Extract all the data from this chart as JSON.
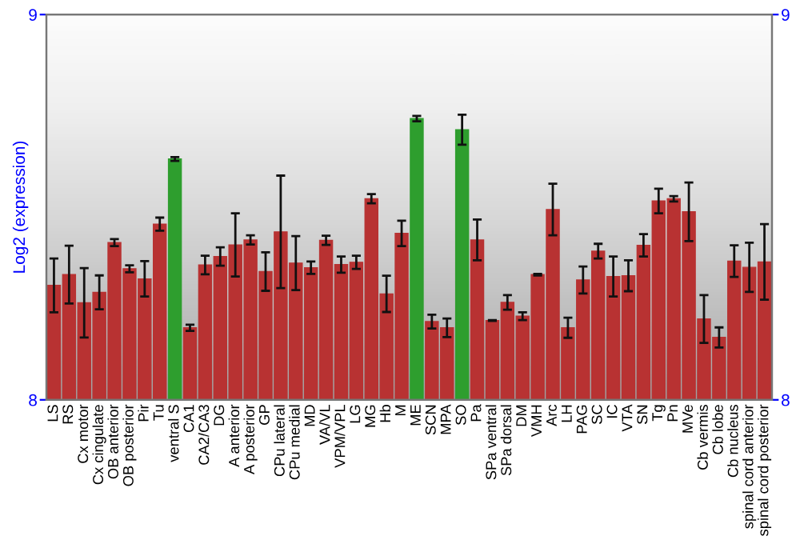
{
  "chart_data": {
    "type": "bar",
    "ylabel": "Log2 (expression)",
    "categories": [
      "LS",
      "RS",
      "Cx motor",
      "Cx cingulate",
      "OB anterior",
      "OB posterior",
      "Pir",
      "Tu",
      "ventral S",
      "CA1",
      "CA2/CA3",
      "DG",
      "A anterior",
      "A posterior",
      "GP",
      "CPu lateral",
      "CPu medial",
      "MD",
      "VA/VL",
      "VPM/VPL",
      "LG",
      "MG",
      "Hb",
      "M",
      "ME",
      "SCN",
      "MPA",
      "SO",
      "Pa",
      "SPa ventral",
      "SPa dorsal",
      "DM",
      "VMH",
      "Arc",
      "LH",
      "PAG",
      "SC",
      "IC",
      "VTA",
      "SN",
      "Tg",
      "Pn",
      "MVe",
      "Cb vermis",
      "Cb lobe",
      "Cb nucleus",
      "spinal cord anterior",
      "spinal cord posterior"
    ],
    "values": [
      8.297,
      8.325,
      8.252,
      8.279,
      8.408,
      8.34,
      8.314,
      8.456,
      8.625,
      8.187,
      8.35,
      8.372,
      8.402,
      8.415,
      8.333,
      8.436,
      8.355,
      8.343,
      8.414,
      8.351,
      8.357,
      8.522,
      8.275,
      8.432,
      8.73,
      8.203,
      8.187,
      8.701,
      8.415,
      8.206,
      8.253,
      8.217,
      8.325,
      8.494,
      8.187,
      8.311,
      8.386,
      8.32,
      8.322,
      8.401,
      8.516,
      8.522,
      8.488,
      8.21,
      8.162,
      8.36,
      8.344,
      8.358
    ],
    "errors": [
      0.07,
      0.075,
      0.09,
      0.044,
      0.009,
      0.009,
      0.046,
      0.017,
      0.005,
      0.008,
      0.024,
      0.024,
      0.082,
      0.012,
      0.05,
      0.146,
      0.07,
      0.016,
      0.012,
      0.021,
      0.017,
      0.012,
      0.047,
      0.033,
      0.007,
      0.018,
      0.024,
      0.039,
      0.053,
      0.001,
      0.019,
      0.01,
      0.002,
      0.067,
      0.026,
      0.035,
      0.019,
      0.052,
      0.04,
      0.029,
      0.032,
      0.007,
      0.076,
      0.062,
      0.026,
      0.041,
      0.064,
      0.098
    ],
    "colors": [
      "#b83232",
      "#b83232",
      "#b83232",
      "#b83232",
      "#b83232",
      "#b83232",
      "#b83232",
      "#b83232",
      "#2e9e2e",
      "#b83232",
      "#b83232",
      "#b83232",
      "#b83232",
      "#b83232",
      "#b83232",
      "#b83232",
      "#b83232",
      "#b83232",
      "#b83232",
      "#b83232",
      "#b83232",
      "#b83232",
      "#b83232",
      "#b83232",
      "#2e9e2e",
      "#b83232",
      "#b83232",
      "#2e9e2e",
      "#b83232",
      "#b83232",
      "#b83232",
      "#b83232",
      "#b83232",
      "#b83232",
      "#b83232",
      "#b83232",
      "#b83232",
      "#b83232",
      "#b83232",
      "#b83232",
      "#b83232",
      "#b83232",
      "#b83232",
      "#b83232",
      "#b83232",
      "#b83232",
      "#b83232",
      "#b83232"
    ],
    "ylim": [
      8,
      9
    ],
    "yticks": [
      8,
      9
    ],
    "y2lim": [
      8,
      9
    ],
    "y2ticks": [
      8,
      9
    ],
    "grid": false,
    "legend": false
  }
}
